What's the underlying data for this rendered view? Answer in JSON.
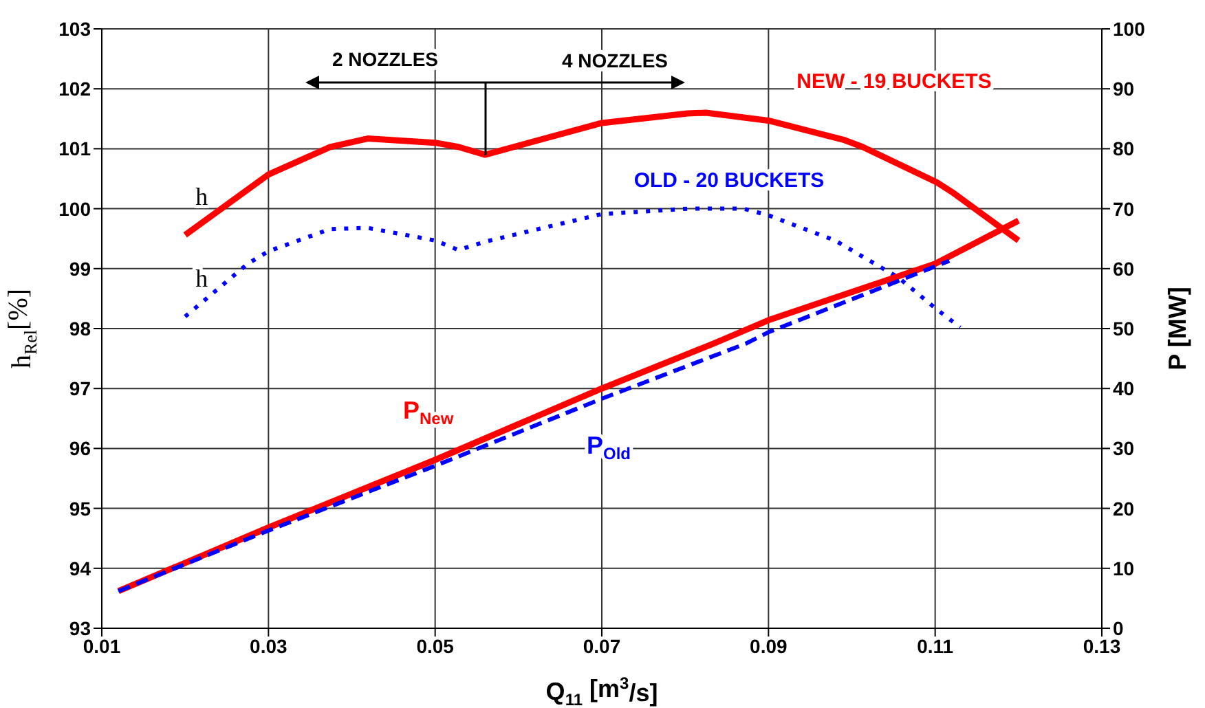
{
  "chart_data": {
    "type": "line",
    "xlabel": "Q$_{11}$ [m$^{3}$/s]",
    "ylabel": "h$_{Rel}$[%]",
    "y2label": "P [MW]",
    "xlim": [
      0.01,
      0.13
    ],
    "xticks": [
      0.01,
      0.03,
      0.05,
      0.07,
      0.09,
      0.11,
      0.13
    ],
    "ylim": [
      93,
      103
    ],
    "yticks": [
      93,
      94,
      95,
      96,
      97,
      98,
      99,
      100,
      101,
      102,
      103
    ],
    "y2lim": [
      0,
      100
    ],
    "y2ticks": [
      0,
      10,
      20,
      30,
      40,
      50,
      60,
      70,
      80,
      90,
      100
    ],
    "grid": true,
    "marker": "none",
    "series": [
      {
        "name": "h",
        "color": "#ff0000",
        "line_style": "solid",
        "x": [
          0.02,
          0.03,
          0.0374,
          0.0419,
          0.05,
          0.0528,
          0.056,
          0.07,
          0.0803,
          0.0825,
          0.09,
          0.099,
          0.1013,
          0.1102,
          0.112,
          0.12
        ],
        "values": [
          99.56,
          100.57,
          101.03,
          101.17,
          101.1,
          101.03,
          100.9,
          101.43,
          101.59,
          101.6,
          101.47,
          101.15,
          101.03,
          100.44,
          100.28,
          99.47
        ]
      },
      {
        "name": "h",
        "color": "#0000ff",
        "line_style": "dotted",
        "x": [
          0.02,
          0.0275,
          0.03,
          0.0374,
          0.0419,
          0.05,
          0.0528,
          0.056,
          0.07,
          0.0803,
          0.087,
          0.09,
          0.098,
          0.1013,
          0.1056,
          0.1102,
          0.113
        ],
        "values": [
          98.2,
          99.08,
          99.29,
          99.66,
          99.68,
          99.47,
          99.31,
          99.45,
          99.91,
          100.0,
          100.0,
          99.89,
          99.47,
          99.2,
          98.85,
          98.32,
          98.02
        ]
      },
      {
        "name": "P$_{New}$",
        "color": "#ff0000",
        "line_style": "solid",
        "axis": "y2",
        "x": [
          0.012,
          0.03,
          0.05,
          0.07,
          0.0836,
          0.09,
          0.11,
          0.12
        ],
        "values": [
          6.2,
          16.8,
          28.1,
          40.0,
          47.6,
          51.4,
          60.8,
          68.0
        ]
      },
      {
        "name": "P$_{Old}$",
        "color": "#0000ff",
        "line_style": "dashed",
        "axis": "y2",
        "x": [
          0.012,
          0.03,
          0.05,
          0.07,
          0.0873,
          0.09,
          0.1046,
          0.1117
        ],
        "values": [
          6.2,
          16.3,
          27.1,
          38.3,
          47.5,
          49.4,
          57.4,
          61.3
        ]
      }
    ],
    "annotations": [
      "2 NOZZLES",
      "4 NOZZLES",
      "NEW - 19 BUCKETS",
      "OLD - 20 BUCKETS"
    ]
  }
}
